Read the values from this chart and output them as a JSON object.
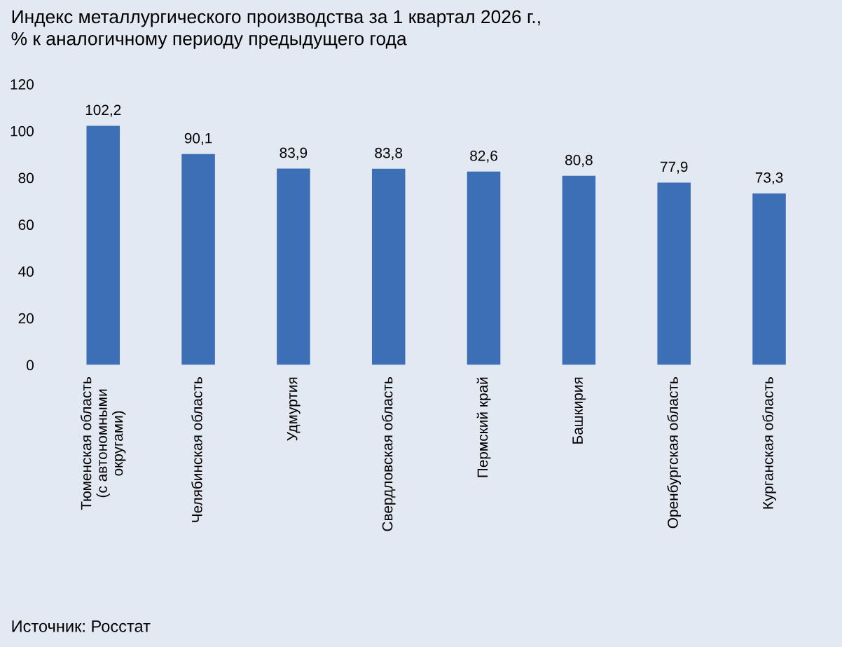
{
  "chart_data": {
    "type": "bar",
    "title": "Индекс металлургического производства за 1 квартал 2026 г.,\n% к аналогичному периоду предыдущего года",
    "categories": [
      "Тюменская область\n(с автономными\nокругами)",
      "Челябинская область",
      "Удмуртия",
      "Свердловская область",
      "Пермский край",
      "Башкирия",
      "Оренбургская область",
      "Курганская область"
    ],
    "values": [
      102.2,
      90.1,
      83.9,
      83.8,
      82.6,
      80.8,
      77.9,
      73.3
    ],
    "value_labels": [
      "102,2",
      "90,1",
      "83,9",
      "83,8",
      "82,6",
      "80,8",
      "77,9",
      "73,3"
    ],
    "color": "#3d6fb7",
    "ylim": [
      0,
      120
    ],
    "yticks": [
      0,
      20,
      40,
      60,
      80,
      100,
      120
    ],
    "grid": false,
    "legend": false,
    "annotations": [
      "Источник: Росстат"
    ]
  }
}
